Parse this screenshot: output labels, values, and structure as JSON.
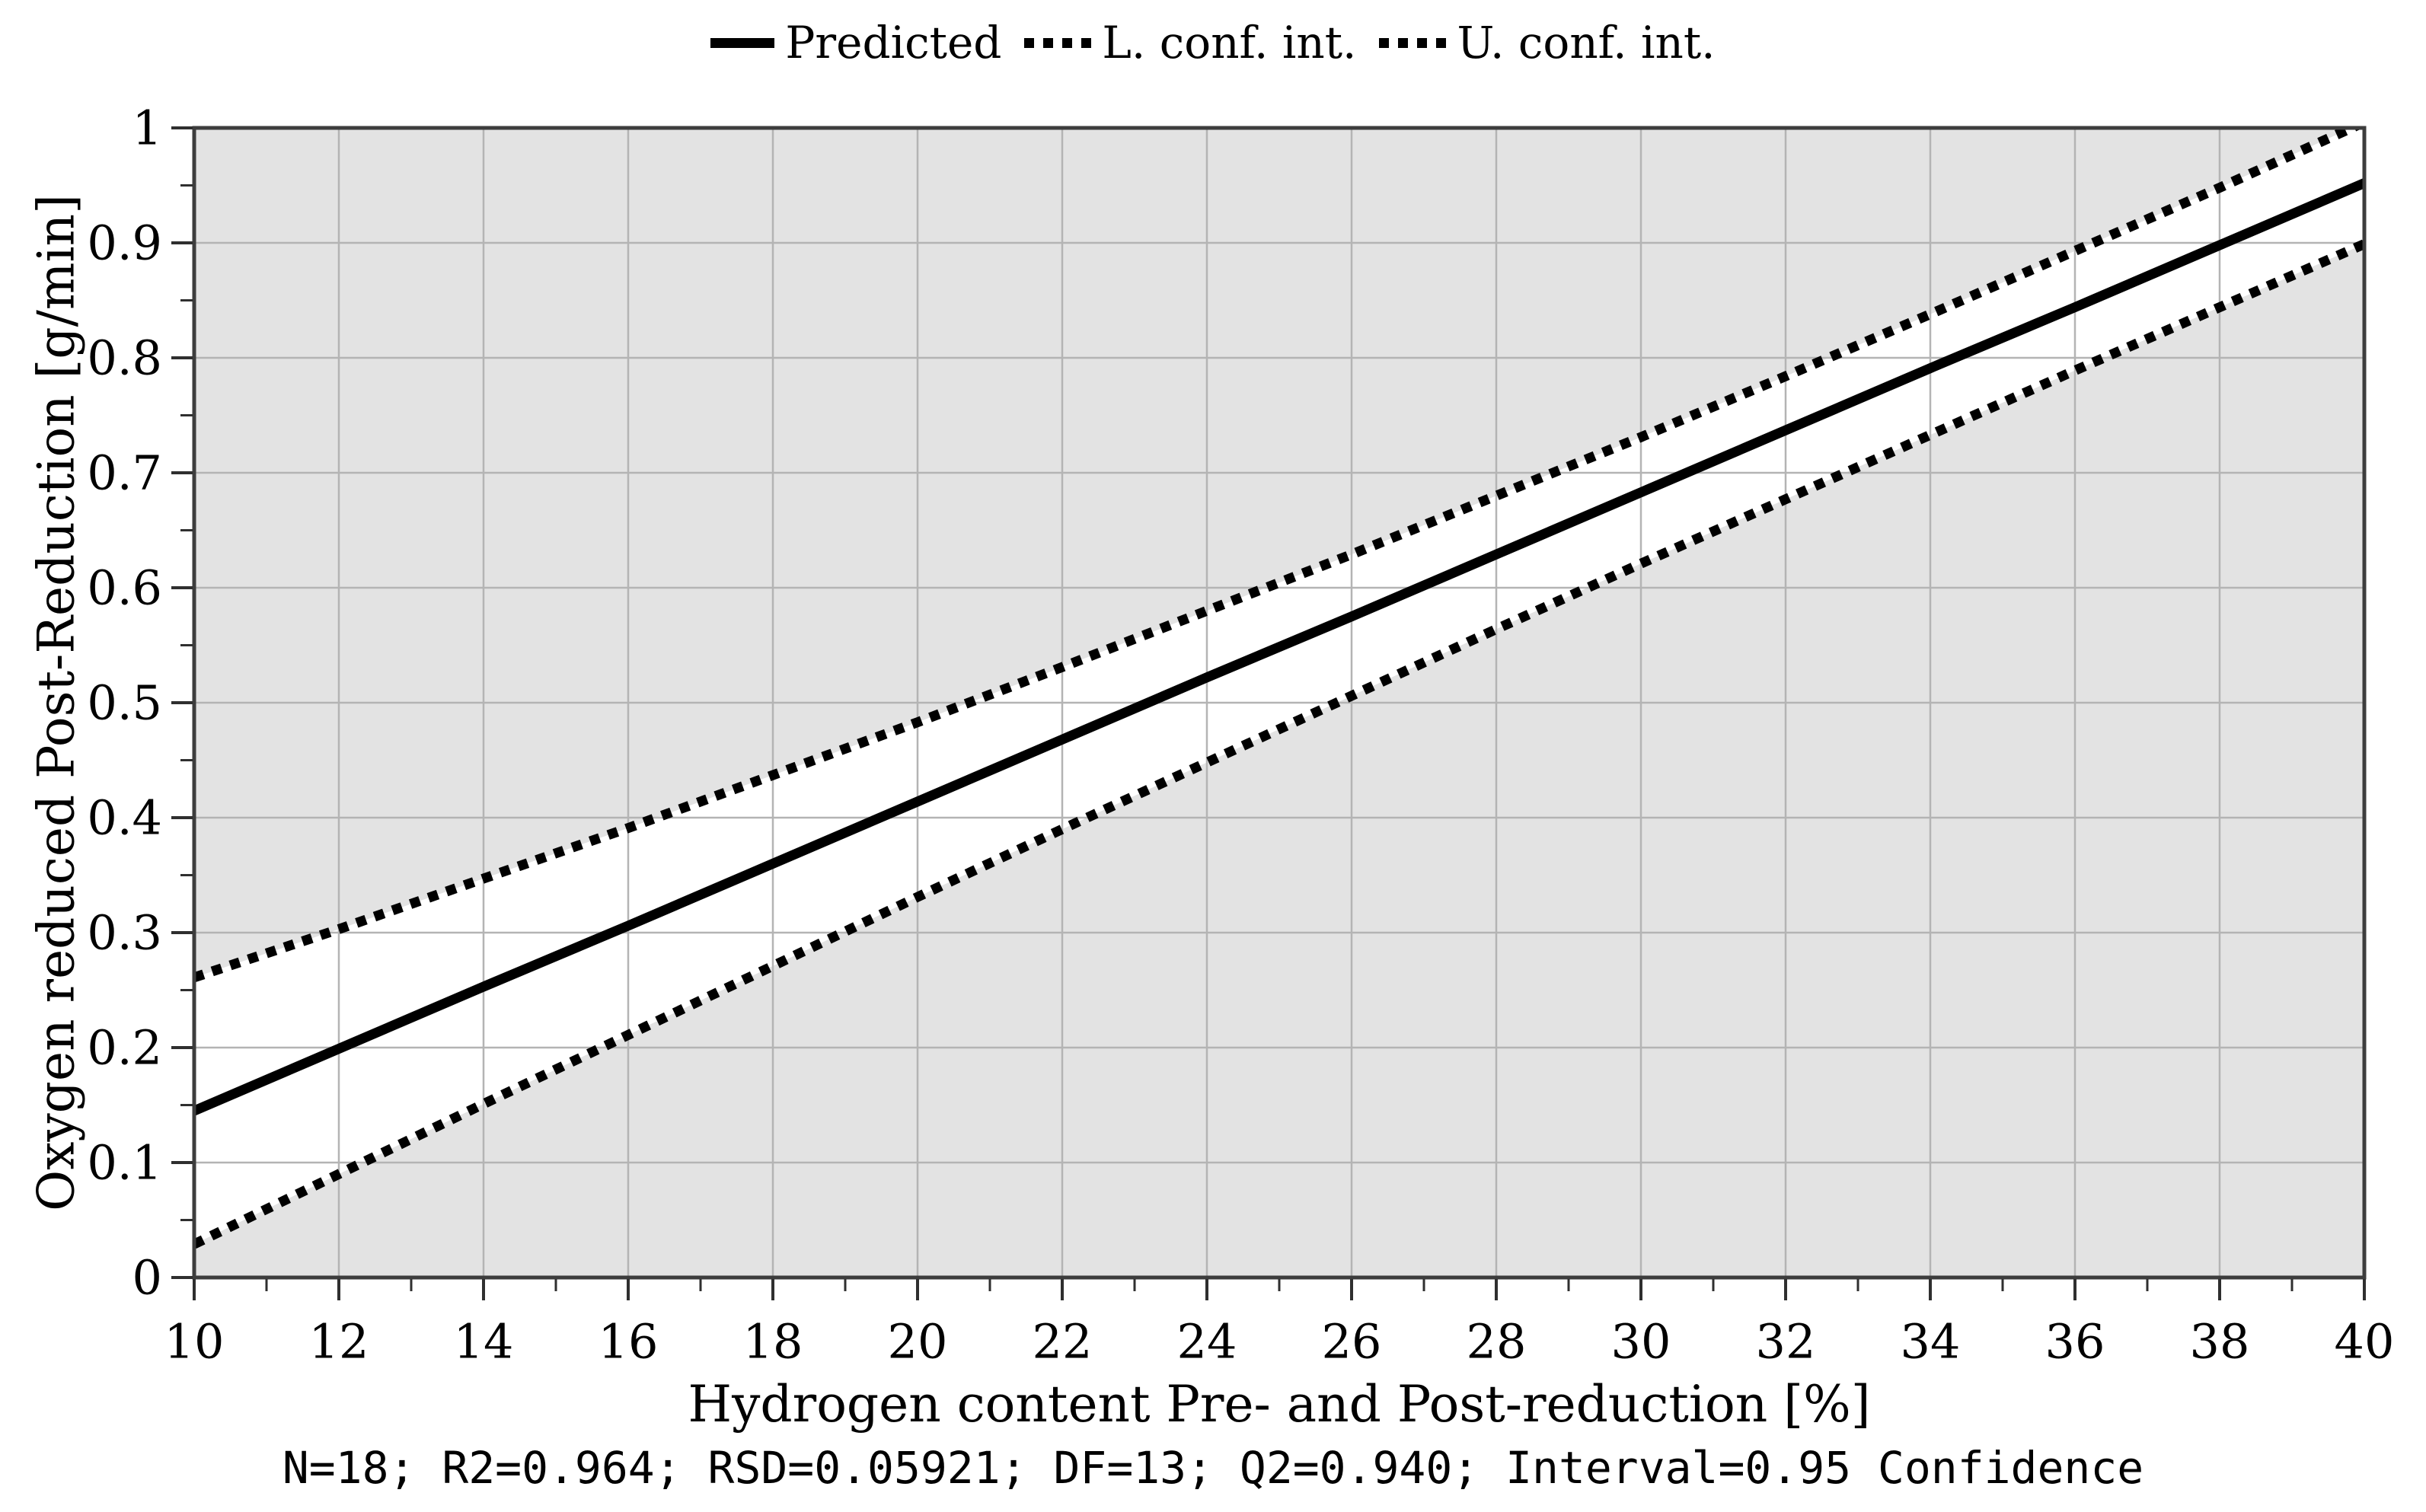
{
  "chart_data": {
    "type": "line",
    "title": "",
    "xlabel": "Hydrogen content Pre- and Post-reduction [%]",
    "ylabel": "Oxygen reduced Post-Reduction [g/min]",
    "stats_caption": "N=18; R2=0.964; RSD=0.05921; DF=13; Q2=0.940; Interval=0.95 Confidence",
    "legend_position": "top",
    "legend": [
      {
        "label": "Predicted",
        "style": "solid"
      },
      {
        "label": "L. conf. int.",
        "style": "dotted"
      },
      {
        "label": "U. conf. int.",
        "style": "dotted"
      }
    ],
    "xlim": [
      10,
      40
    ],
    "ylim": [
      0,
      1
    ],
    "grid": true,
    "x_major_ticks": [
      10,
      12,
      14,
      16,
      18,
      20,
      22,
      24,
      26,
      28,
      30,
      32,
      34,
      36,
      38,
      40
    ],
    "x_tick_labels": [
      "10",
      "12",
      "14",
      "16",
      "18",
      "20",
      "22",
      "24",
      "26",
      "28",
      "30",
      "32",
      "34",
      "36",
      "38",
      "40"
    ],
    "x_minor_step": 1,
    "y_major_ticks": [
      0,
      0.1,
      0.2,
      0.3,
      0.4,
      0.5,
      0.6,
      0.7,
      0.8,
      0.9,
      1
    ],
    "y_tick_labels": [
      "0",
      "0.1",
      "0.2",
      "0.3",
      "0.4",
      "0.5",
      "0.6",
      "0.7",
      "0.8",
      "0.9",
      "1"
    ],
    "y_minor_step": 0.05,
    "x": [
      10,
      12,
      14,
      16,
      18,
      20,
      22,
      24,
      26,
      28,
      30,
      32,
      34,
      36,
      38,
      40
    ],
    "series": [
      {
        "name": "Predicted",
        "style": "solid",
        "values": [
          0.145,
          0.199,
          0.253,
          0.306,
          0.36,
          0.414,
          0.468,
          0.522,
          0.575,
          0.629,
          0.683,
          0.737,
          0.791,
          0.844,
          0.898,
          0.952
        ]
      },
      {
        "name": "L. conf. int.",
        "style": "dotted",
        "values": [
          0.029,
          0.09,
          0.151,
          0.211,
          0.271,
          0.331,
          0.39,
          0.448,
          0.506,
          0.564,
          0.621,
          0.677,
          0.733,
          0.789,
          0.844,
          0.899
        ]
      },
      {
        "name": "U. conf. int.",
        "style": "dotted",
        "values": [
          0.261,
          0.303,
          0.347,
          0.391,
          0.437,
          0.483,
          0.531,
          0.58,
          0.629,
          0.68,
          0.731,
          0.784,
          0.838,
          0.893,
          0.948,
          1.005
        ]
      }
    ],
    "colors": {
      "line": "#000000",
      "plot_background": "#e3e3e3",
      "band_fill": "#ffffff",
      "grid": "#b4b4b4",
      "border": "#3d3d3d",
      "tick": "#2f2f2f",
      "text": "#000000"
    }
  }
}
